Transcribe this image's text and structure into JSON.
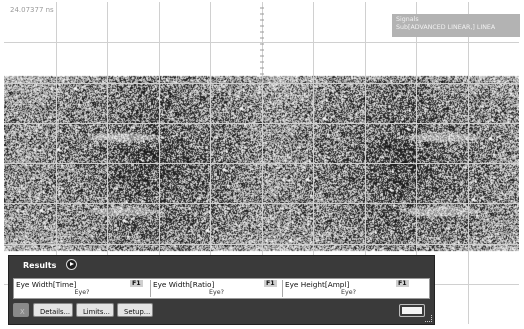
{
  "plot": {
    "time_readout": "24.07377 ns"
  },
  "signals": {
    "title": "Signals",
    "item": "Sub[ADVANCED LINEAR,] LINEA"
  },
  "results": {
    "title": "Results",
    "measurements": [
      {
        "name": "Eye Width[Time]",
        "source": "F1",
        "value": "Eye?"
      },
      {
        "name": "Eye Width[Ratio]",
        "source": "F1",
        "value": "Eye?"
      },
      {
        "name": "Eye Height[Ampl]",
        "source": "F1",
        "value": "Eye?"
      }
    ],
    "buttons": {
      "delete": "X",
      "details": "Details...",
      "limits": "Limits...",
      "setup": "Setup..."
    }
  },
  "colors": {
    "eye_background": "#1e1e1e",
    "grid": "#d0d0d0",
    "panel": "#3a3a3a"
  },
  "icons": {
    "results_expand": "play-arrow-icon",
    "delete": "x-icon",
    "resize": "resize-grip-icon"
  }
}
